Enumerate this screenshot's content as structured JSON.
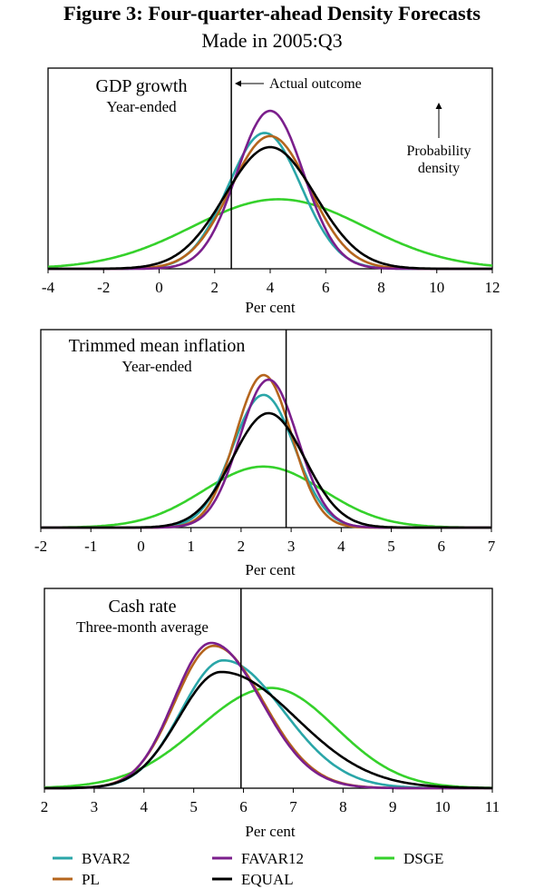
{
  "figure": {
    "title": "Figure 3: Four-quarter-ahead Density Forecasts",
    "subtitle": "Made in 2005:Q3"
  },
  "colors": {
    "BVAR2": "#2aa6a8",
    "PL": "#b5651d",
    "FAVAR12": "#7b1f8c",
    "DSGE": "#35d12b",
    "EQUAL": "#000000"
  },
  "legend": [
    {
      "name": "BVAR2",
      "color": "#2aa6a8"
    },
    {
      "name": "FAVAR12",
      "color": "#7b1f8c"
    },
    {
      "name": "DSGE",
      "color": "#35d12b"
    },
    {
      "name": "PL",
      "color": "#b5651d"
    },
    {
      "name": "EQUAL",
      "color": "#000000"
    }
  ],
  "chart_data": [
    {
      "type": "line",
      "title": "GDP growth",
      "subtitle": "Year-ended",
      "xlabel": "Per cent",
      "ylabel": "",
      "xlim": [
        -4,
        12
      ],
      "xticks": [
        -4,
        -2,
        0,
        2,
        4,
        6,
        8,
        10,
        12
      ],
      "ylim": [
        0,
        1.05
      ],
      "actual_outcome": 2.6,
      "annotations": {
        "actual": "Actual outcome",
        "density": [
          "Probability",
          "density"
        ]
      },
      "series": [
        {
          "name": "BVAR2",
          "kind": "normal",
          "mu": 3.8,
          "sd": 1.32,
          "peak": 0.86
        },
        {
          "name": "PL",
          "kind": "normal",
          "mu": 4.0,
          "sd": 1.42,
          "peak": 0.84
        },
        {
          "name": "FAVAR12",
          "kind": "normal",
          "mu": 4.0,
          "sd": 1.2,
          "peak": 1.0
        },
        {
          "name": "EQUAL",
          "kind": "normal",
          "mu": 4.0,
          "sd": 1.62,
          "peak": 0.77
        },
        {
          "name": "DSGE",
          "kind": "normal",
          "mu": 4.3,
          "sd": 3.1,
          "peak": 0.44
        }
      ]
    },
    {
      "type": "line",
      "title": "Trimmed mean inflation",
      "subtitle": "Year-ended",
      "xlabel": "Per cent",
      "ylabel": "",
      "xlim": [
        -2,
        7
      ],
      "xticks": [
        -2,
        -1,
        0,
        1,
        2,
        3,
        4,
        5,
        6,
        7
      ],
      "ylim": [
        0,
        1.05
      ],
      "actual_outcome": 2.9,
      "series": [
        {
          "name": "BVAR2",
          "kind": "normal",
          "mu": 2.45,
          "sd": 0.62,
          "peak": 0.87
        },
        {
          "name": "PL",
          "kind": "normal",
          "mu": 2.45,
          "sd": 0.56,
          "peak": 1.0
        },
        {
          "name": "FAVAR12",
          "kind": "normal",
          "mu": 2.55,
          "sd": 0.58,
          "peak": 0.97
        },
        {
          "name": "EQUAL",
          "kind": "normal",
          "mu": 2.55,
          "sd": 0.72,
          "peak": 0.75
        },
        {
          "name": "DSGE",
          "kind": "normal",
          "mu": 2.45,
          "sd": 1.2,
          "peak": 0.4
        }
      ]
    },
    {
      "type": "line",
      "title": "Cash rate",
      "subtitle": "Three-month average",
      "xlabel": "Per cent",
      "ylabel": "",
      "xlim": [
        2,
        11
      ],
      "xticks": [
        2,
        3,
        4,
        5,
        6,
        7,
        8,
        9,
        10,
        11
      ],
      "ylim": [
        0,
        1.05
      ],
      "actual_outcome": 5.95,
      "series": [
        {
          "name": "BVAR2",
          "kind": "skew",
          "mode": 5.6,
          "sl": 0.85,
          "sr": 1.2,
          "peak": 0.88
        },
        {
          "name": "PL",
          "kind": "skew",
          "mode": 5.4,
          "sl": 0.78,
          "sr": 1.0,
          "peak": 0.98
        },
        {
          "name": "FAVAR12",
          "kind": "skew",
          "mode": 5.35,
          "sl": 0.75,
          "sr": 1.0,
          "peak": 1.0
        },
        {
          "name": "EQUAL",
          "kind": "skew",
          "mode": 5.55,
          "sl": 0.85,
          "sr": 1.5,
          "peak": 0.8
        },
        {
          "name": "DSGE",
          "kind": "skew",
          "mode": 6.55,
          "sl": 1.45,
          "sr": 1.3,
          "peak": 0.69
        }
      ]
    }
  ]
}
